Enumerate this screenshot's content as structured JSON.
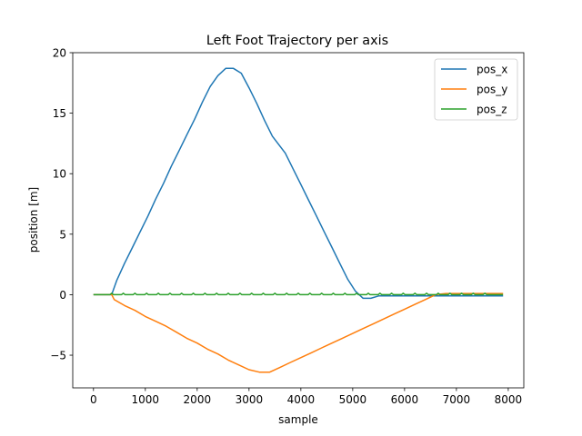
{
  "chart_data": {
    "type": "line",
    "title": "Left Foot Trajectory per axis",
    "xlabel": "sample",
    "ylabel": "position [m]",
    "xlim": [
      -400,
      8300
    ],
    "ylim": [
      -7.7,
      20
    ],
    "xticks": [
      0,
      1000,
      2000,
      3000,
      4000,
      5000,
      6000,
      7000,
      8000
    ],
    "xtick_labels": [
      "0",
      "1000",
      "2000",
      "3000",
      "4000",
      "5000",
      "6000",
      "7000",
      "8000"
    ],
    "yticks": [
      -5,
      0,
      5,
      10,
      15,
      20
    ],
    "ytick_labels": [
      "−5",
      "0",
      "5",
      "10",
      "15",
      "20"
    ],
    "grid": false,
    "legend_position": "top-right",
    "series": [
      {
        "name": "pos_x",
        "color": "#1f77b4",
        "x": [
          0,
          350,
          450,
          600,
          750,
          900,
          1050,
          1200,
          1350,
          1500,
          1650,
          1800,
          1950,
          2100,
          2250,
          2400,
          2550,
          2700,
          2850,
          3000,
          3150,
          3300,
          3450,
          3700,
          3850,
          4000,
          4150,
          4300,
          4450,
          4600,
          4750,
          4900,
          5050,
          5200,
          5350,
          5500,
          5650,
          5800,
          5950,
          6100,
          6250,
          6400,
          6550,
          6700,
          6850,
          7000,
          7150,
          7400,
          7500,
          7900
        ],
        "y": [
          0,
          0,
          1.2,
          2.6,
          3.9,
          5.2,
          6.5,
          7.9,
          9.2,
          10.6,
          11.9,
          13.2,
          14.5,
          15.9,
          17.2,
          18.1,
          18.7,
          18.7,
          18.3,
          17.1,
          15.8,
          14.4,
          13.1,
          11.7,
          10.4,
          9.1,
          7.8,
          6.5,
          5.2,
          3.9,
          2.6,
          1.3,
          0.3,
          -0.3,
          -0.3,
          -0.1,
          -0.1,
          -0.1,
          -0.1,
          -0.1,
          -0.1,
          -0.1,
          -0.1,
          -0.1,
          -0.1,
          -0.1,
          -0.1,
          -0.1,
          -0.1,
          -0.1
        ]
      },
      {
        "name": "pos_y",
        "color": "#ff7f0e",
        "x": [
          0,
          350,
          400,
          600,
          800,
          1000,
          1200,
          1400,
          1600,
          1800,
          2000,
          2200,
          2400,
          2600,
          2800,
          3000,
          3200,
          3400,
          3600,
          3800,
          4000,
          4200,
          4400,
          4600,
          4800,
          5000,
          5200,
          5400,
          5600,
          5800,
          6000,
          6200,
          6400,
          6600,
          6800,
          7000,
          7200,
          7600,
          7900
        ],
        "y": [
          0,
          0,
          -0.4,
          -0.9,
          -1.3,
          -1.8,
          -2.2,
          -2.6,
          -3.1,
          -3.6,
          -4.0,
          -4.5,
          -4.9,
          -5.4,
          -5.8,
          -6.2,
          -6.4,
          -6.4,
          -6.0,
          -5.6,
          -5.2,
          -4.8,
          -4.4,
          -4.0,
          -3.6,
          -3.2,
          -2.8,
          -2.4,
          -2.0,
          -1.6,
          -1.2,
          -0.8,
          -0.4,
          0.0,
          0.1,
          0.1,
          0.1,
          0.1,
          0.1
        ]
      },
      {
        "name": "pos_z",
        "color": "#2ca02c",
        "x": [
          0,
          7900
        ],
        "y": [
          0,
          0
        ],
        "bump_period": 225,
        "bump_height": 0.12,
        "bump_start": 350,
        "bump_end": 7600
      }
    ]
  }
}
